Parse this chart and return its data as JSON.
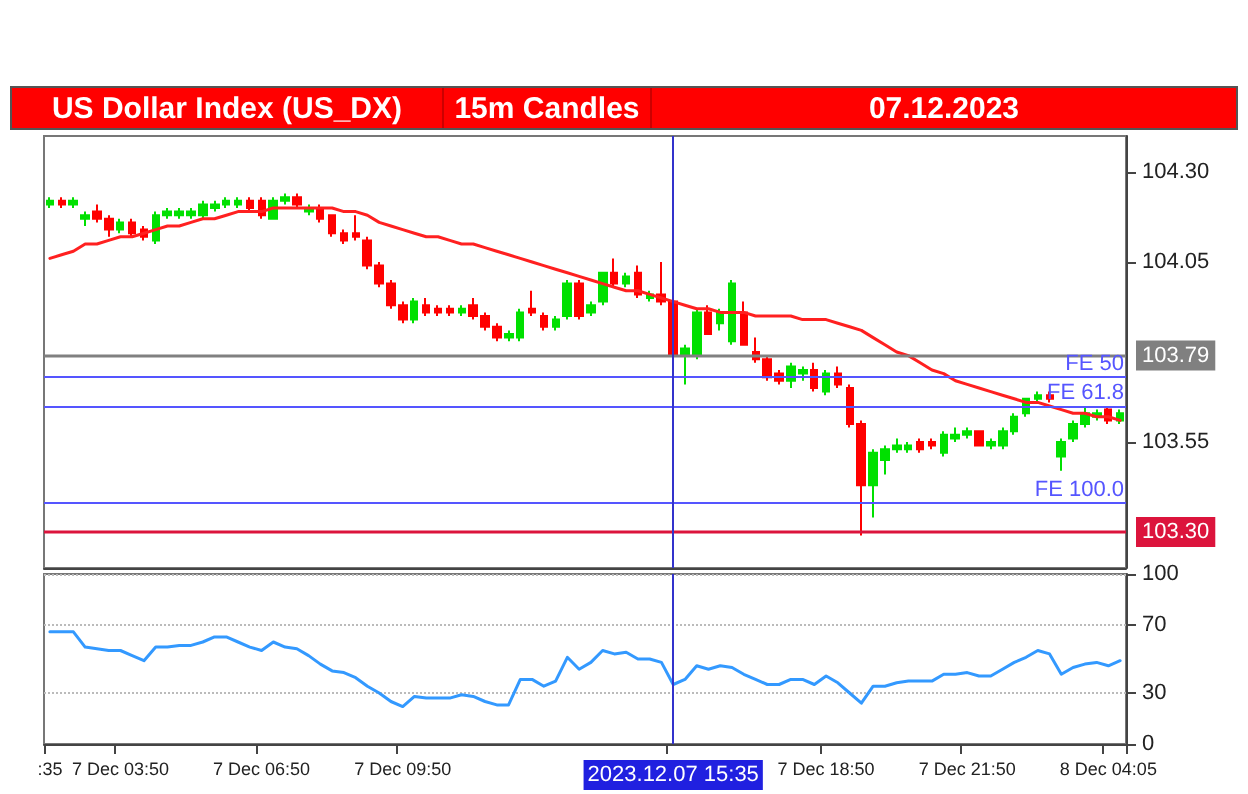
{
  "chart_data": [
    {
      "type": "candlestick",
      "title": "US Dollar Index (US_DX)",
      "subtitle": "15m Candles",
      "annotations": [
        "07.12.2023"
      ],
      "categories": [
        ":35",
        null,
        null,
        null,
        null,
        null,
        "7 Dec 03:50",
        null,
        null,
        null,
        null,
        null,
        null,
        null,
        null,
        null,
        null,
        null,
        "7 Dec 06:50",
        null,
        null,
        null,
        null,
        null,
        null,
        null,
        null,
        null,
        null,
        null,
        "7 Dec 09:50",
        null,
        null,
        null,
        null,
        null,
        null,
        null,
        null,
        null,
        null,
        null,
        null,
        null,
        null,
        null,
        null,
        null,
        null,
        null,
        null,
        null,
        null,
        "2023.12.07 15:35",
        null,
        null,
        null,
        null,
        null,
        null,
        null,
        null,
        null,
        null,
        null,
        null,
        "7 Dec 18:50",
        null,
        null,
        null,
        null,
        null,
        null,
        null,
        null,
        null,
        null,
        null,
        "7 Dec 21:50",
        null,
        null,
        null,
        null,
        null,
        null,
        null,
        null,
        null,
        null,
        null,
        "8 Dec 04:05",
        null
      ],
      "ohlc": [
        [
          104.21,
          104.23,
          104.2,
          104.22
        ],
        [
          104.22,
          104.23,
          104.2,
          104.21
        ],
        [
          104.21,
          104.23,
          104.2,
          104.22
        ],
        [
          104.17,
          104.19,
          104.15,
          104.18
        ],
        [
          104.19,
          104.21,
          104.16,
          104.17
        ],
        [
          104.17,
          104.18,
          104.12,
          104.14
        ],
        [
          104.14,
          104.17,
          104.13,
          104.16
        ],
        [
          104.16,
          104.17,
          104.12,
          104.13
        ],
        [
          104.14,
          104.15,
          104.11,
          104.12
        ],
        [
          104.11,
          104.19,
          104.1,
          104.18
        ],
        [
          104.18,
          104.2,
          104.17,
          104.19
        ],
        [
          104.18,
          104.2,
          104.17,
          104.19
        ],
        [
          104.18,
          104.2,
          104.17,
          104.19
        ],
        [
          104.18,
          104.22,
          104.17,
          104.21
        ],
        [
          104.2,
          104.22,
          104.19,
          104.21
        ],
        [
          104.21,
          104.23,
          104.2,
          104.22
        ],
        [
          104.21,
          104.23,
          104.2,
          104.22
        ],
        [
          104.22,
          104.23,
          104.19,
          104.2
        ],
        [
          104.22,
          104.23,
          104.17,
          104.18
        ],
        [
          104.17,
          104.23,
          104.17,
          104.22
        ],
        [
          104.22,
          104.24,
          104.21,
          104.23
        ],
        [
          104.23,
          104.24,
          104.2,
          104.21
        ],
        [
          104.19,
          104.21,
          104.18,
          104.2
        ],
        [
          104.2,
          104.21,
          104.16,
          104.17
        ],
        [
          104.18,
          104.18,
          104.12,
          104.13
        ],
        [
          104.13,
          104.14,
          104.1,
          104.11
        ],
        [
          104.13,
          104.18,
          104.11,
          104.12
        ],
        [
          104.11,
          104.12,
          104.03,
          104.04
        ],
        [
          104.04,
          104.05,
          103.98,
          103.99
        ],
        [
          103.99,
          104.0,
          103.92,
          103.93
        ],
        [
          103.93,
          103.94,
          103.88,
          103.89
        ],
        [
          103.89,
          103.95,
          103.88,
          103.94
        ],
        [
          103.93,
          103.95,
          103.9,
          103.91
        ],
        [
          103.92,
          103.93,
          103.9,
          103.91
        ],
        [
          103.92,
          103.93,
          103.9,
          103.91
        ],
        [
          103.91,
          103.93,
          103.9,
          103.92
        ],
        [
          103.93,
          103.95,
          103.89,
          103.9
        ],
        [
          103.9,
          103.91,
          103.86,
          103.87
        ],
        [
          103.87,
          103.88,
          103.83,
          103.84
        ],
        [
          103.84,
          103.86,
          103.83,
          103.85
        ],
        [
          103.84,
          103.92,
          103.83,
          103.91
        ],
        [
          103.92,
          103.97,
          103.9,
          103.91
        ],
        [
          103.9,
          103.91,
          103.86,
          103.87
        ],
        [
          103.87,
          103.9,
          103.86,
          103.89
        ],
        [
          103.9,
          104.0,
          103.89,
          103.99
        ],
        [
          103.99,
          104.0,
          103.89,
          103.9
        ],
        [
          103.91,
          103.94,
          103.9,
          103.93
        ],
        [
          103.94,
          104.02,
          103.93,
          104.02
        ],
        [
          104.02,
          104.06,
          103.98,
          103.99
        ],
        [
          103.99,
          104.02,
          103.98,
          104.01
        ],
        [
          104.02,
          104.04,
          103.95,
          103.96
        ],
        [
          103.95,
          103.97,
          103.94,
          103.96
        ],
        [
          103.96,
          104.05,
          103.93,
          103.94
        ],
        [
          103.94,
          103.95,
          103.78,
          103.79
        ],
        [
          103.79,
          103.82,
          103.71,
          103.81
        ],
        [
          103.79,
          103.92,
          103.78,
          103.91
        ],
        [
          103.91,
          103.93,
          103.85,
          103.85
        ],
        [
          103.88,
          103.92,
          103.86,
          103.91
        ],
        [
          103.83,
          104.0,
          103.82,
          103.99
        ],
        [
          103.91,
          103.94,
          103.82,
          103.82
        ],
        [
          103.8,
          103.84,
          103.77,
          103.78
        ],
        [
          103.78,
          103.79,
          103.72,
          103.73
        ],
        [
          103.74,
          103.75,
          103.71,
          103.72
        ],
        [
          103.72,
          103.77,
          103.7,
          103.76
        ],
        [
          103.74,
          103.76,
          103.72,
          103.75
        ],
        [
          103.75,
          103.77,
          103.69,
          103.7
        ],
        [
          103.69,
          103.75,
          103.68,
          103.74
        ],
        [
          103.74,
          103.76,
          103.7,
          103.71
        ],
        [
          103.7,
          103.71,
          103.59,
          103.6
        ],
        [
          103.6,
          103.61,
          103.29,
          103.43
        ],
        [
          103.43,
          103.53,
          103.34,
          103.52
        ],
        [
          103.5,
          103.54,
          103.46,
          103.53
        ],
        [
          103.53,
          103.56,
          103.52,
          103.54
        ],
        [
          103.53,
          103.55,
          103.52,
          103.54
        ],
        [
          103.55,
          103.56,
          103.52,
          103.53
        ],
        [
          103.55,
          103.56,
          103.53,
          103.54
        ],
        [
          103.52,
          103.58,
          103.51,
          103.57
        ],
        [
          103.56,
          103.59,
          103.55,
          103.57
        ],
        [
          103.57,
          103.59,
          103.56,
          103.58
        ],
        [
          103.58,
          103.58,
          103.54,
          103.54
        ],
        [
          103.54,
          103.56,
          103.53,
          103.55
        ],
        [
          103.54,
          103.59,
          103.53,
          103.58
        ],
        [
          103.58,
          103.63,
          103.57,
          103.62
        ],
        [
          103.63,
          103.67,
          103.62,
          103.67
        ],
        [
          103.67,
          103.69,
          103.66,
          103.68
        ],
        [
          103.68,
          103.69,
          103.66,
          103.67
        ],
        [
          103.51,
          103.56,
          103.47,
          103.55
        ],
        [
          103.56,
          103.61,
          103.55,
          103.6
        ],
        [
          103.6,
          103.65,
          103.59,
          103.63
        ],
        [
          103.62,
          103.64,
          103.61,
          103.63
        ],
        [
          103.64,
          103.65,
          103.6,
          103.61
        ],
        [
          103.61,
          103.64,
          103.6,
          103.63
        ]
      ],
      "colors": [
        "#00e000",
        "#ff0000",
        "#00e000",
        "#00e000",
        "#ff0000",
        "#ff0000",
        "#00e000",
        "#ff0000",
        "#ff0000",
        "#00e000",
        "#00e000",
        "#00e000",
        "#00e000",
        "#00e000",
        "#00e000",
        "#00e000",
        "#00e000",
        "#ff0000",
        "#ff0000",
        "#00e000",
        "#00e000",
        "#ff0000",
        "#00e000",
        "#ff0000",
        "#ff0000",
        "#ff0000",
        "#ff0000",
        "#ff0000",
        "#ff0000",
        "#ff0000",
        "#ff0000",
        "#00e000",
        "#ff0000",
        "#ff0000",
        "#ff0000",
        "#00e000",
        "#ff0000",
        "#ff0000",
        "#ff0000",
        "#00e000",
        "#00e000",
        "#ff0000",
        "#ff0000",
        "#00e000",
        "#00e000",
        "#ff0000",
        "#00e000",
        "#00e000",
        "#ff0000",
        "#00e000",
        "#ff0000",
        "#00e000",
        "#ff0000",
        "#ff0000",
        "#00e000",
        "#00e000",
        "#ff0000",
        "#00e000",
        "#00e000",
        "#ff0000",
        "#ff0000",
        "#ff0000",
        "#ff0000",
        "#00e000",
        "#00e000",
        "#ff0000",
        "#00e000",
        "#ff0000",
        "#ff0000",
        "#ff0000",
        "#00e000",
        "#00e000",
        "#00e000",
        "#00e000",
        "#ff0000",
        "#ff0000",
        "#00e000",
        "#00e000",
        "#00e000",
        "#ff0000",
        "#00e000",
        "#00e000",
        "#00e000",
        "#00e000",
        "#00e000",
        "#ff0000",
        "#00e000",
        "#00e000",
        "#00e000",
        "#00e000",
        "#ff0000",
        "#00e000"
      ],
      "series": [
        {
          "type": "line",
          "color": "#ff2020",
          "values": [
            104.06,
            104.07,
            104.08,
            104.1,
            104.1,
            104.11,
            104.12,
            104.12,
            104.13,
            104.14,
            104.15,
            104.15,
            104.16,
            104.17,
            104.17,
            104.18,
            104.19,
            104.19,
            104.19,
            104.2,
            104.2,
            104.2,
            104.2,
            104.2,
            104.2,
            104.19,
            104.19,
            104.18,
            104.16,
            104.15,
            104.14,
            104.13,
            104.12,
            104.12,
            104.11,
            104.1,
            104.1,
            104.09,
            104.08,
            104.07,
            104.06,
            104.05,
            104.04,
            104.03,
            104.02,
            104.01,
            104.0,
            103.99,
            103.98,
            103.97,
            103.97,
            103.96,
            103.95,
            103.94,
            103.93,
            103.92,
            103.92,
            103.91,
            103.91,
            103.91,
            103.9,
            103.9,
            103.9,
            103.9,
            103.89,
            103.89,
            103.89,
            103.88,
            103.87,
            103.86,
            103.84,
            103.82,
            103.8,
            103.79,
            103.77,
            103.75,
            103.74,
            103.72,
            103.71,
            103.7,
            103.69,
            103.68,
            103.67,
            103.66,
            103.66,
            103.65,
            103.64,
            103.63,
            103.63,
            103.62,
            103.62,
            103.61
          ]
        }
      ],
      "ylim": [
        103.2,
        104.4
      ],
      "yticks": [
        103.55,
        104.05,
        {
          "value": 104.3,
          "label": "104.30"
        }
      ],
      "tick_labels": "y",
      "marker": "none",
      "ref_lines": [
        {
          "axis": "y",
          "value": 103.79,
          "label": "103.79",
          "color": "#808080"
        },
        {
          "axis": "y",
          "value": 103.3,
          "label": "103.30",
          "color": "#dc143c"
        },
        {
          "axis": "y",
          "value": 103.73,
          "label": "FE 50",
          "color": "#5555ff"
        },
        {
          "axis": "y",
          "value": 103.65,
          "label": "FE 61.8",
          "color": "#5555ff"
        },
        {
          "axis": "y",
          "value": 103.38,
          "label": "FE 100.0",
          "color": "#5555ff"
        },
        {
          "axis": "x",
          "value": "2023.12.07 15:35",
          "color": "#3333cc"
        }
      ]
    },
    {
      "type": "line",
      "categories": [
        ":35",
        null,
        null,
        null,
        null,
        null,
        "7 Dec 03:50",
        null,
        null,
        null,
        null,
        null,
        null,
        null,
        null,
        null,
        null,
        null,
        "7 Dec 06:50",
        null,
        null,
        null,
        null,
        null,
        null,
        null,
        null,
        null,
        null,
        null,
        "7 Dec 09:50",
        null,
        null,
        null,
        null,
        null,
        null,
        null,
        null,
        null,
        null,
        null,
        null,
        null,
        null,
        null,
        null,
        null,
        null,
        null,
        null,
        null,
        null,
        "2023.12.07 15:35",
        null,
        null,
        null,
        null,
        null,
        null,
        null,
        null,
        null,
        null,
        null,
        null,
        "7 Dec 18:50",
        null,
        null,
        null,
        null,
        null,
        null,
        null,
        null,
        null,
        null,
        null,
        "7 Dec 21:50",
        null,
        null,
        null,
        null,
        null,
        null,
        null,
        null,
        null,
        null,
        null,
        "8 Dec 04:05",
        null
      ],
      "series": [
        {
          "color": "#3399ff",
          "values": [
            66,
            66,
            66,
            57,
            56,
            55,
            55,
            52,
            49,
            57,
            57,
            58,
            58,
            60,
            63,
            63,
            60,
            57,
            55,
            60,
            57,
            56,
            52,
            47,
            43,
            42,
            39,
            34,
            30,
            25,
            22,
            28,
            27,
            27,
            27,
            29,
            28,
            25,
            23,
            23,
            38,
            38,
            34,
            37,
            51,
            44,
            48,
            55,
            53,
            54,
            50,
            50,
            48,
            35,
            38,
            46,
            44,
            46,
            45,
            41,
            38,
            35,
            35,
            38,
            38,
            35,
            40,
            36,
            30,
            24,
            34,
            34,
            36,
            37,
            37,
            37,
            41,
            41,
            42,
            40,
            40,
            44,
            48,
            51,
            55,
            53,
            41,
            45,
            47,
            48,
            46,
            49
          ]
        }
      ],
      "ylim": [
        0,
        100
      ],
      "yticks": [
        0,
        30,
        70,
        100
      ],
      "grid": "y",
      "marker": "none",
      "ref_lines": [
        {
          "axis": "x",
          "value": "2023.12.07 15:35",
          "color": "#3333cc"
        }
      ]
    }
  ]
}
